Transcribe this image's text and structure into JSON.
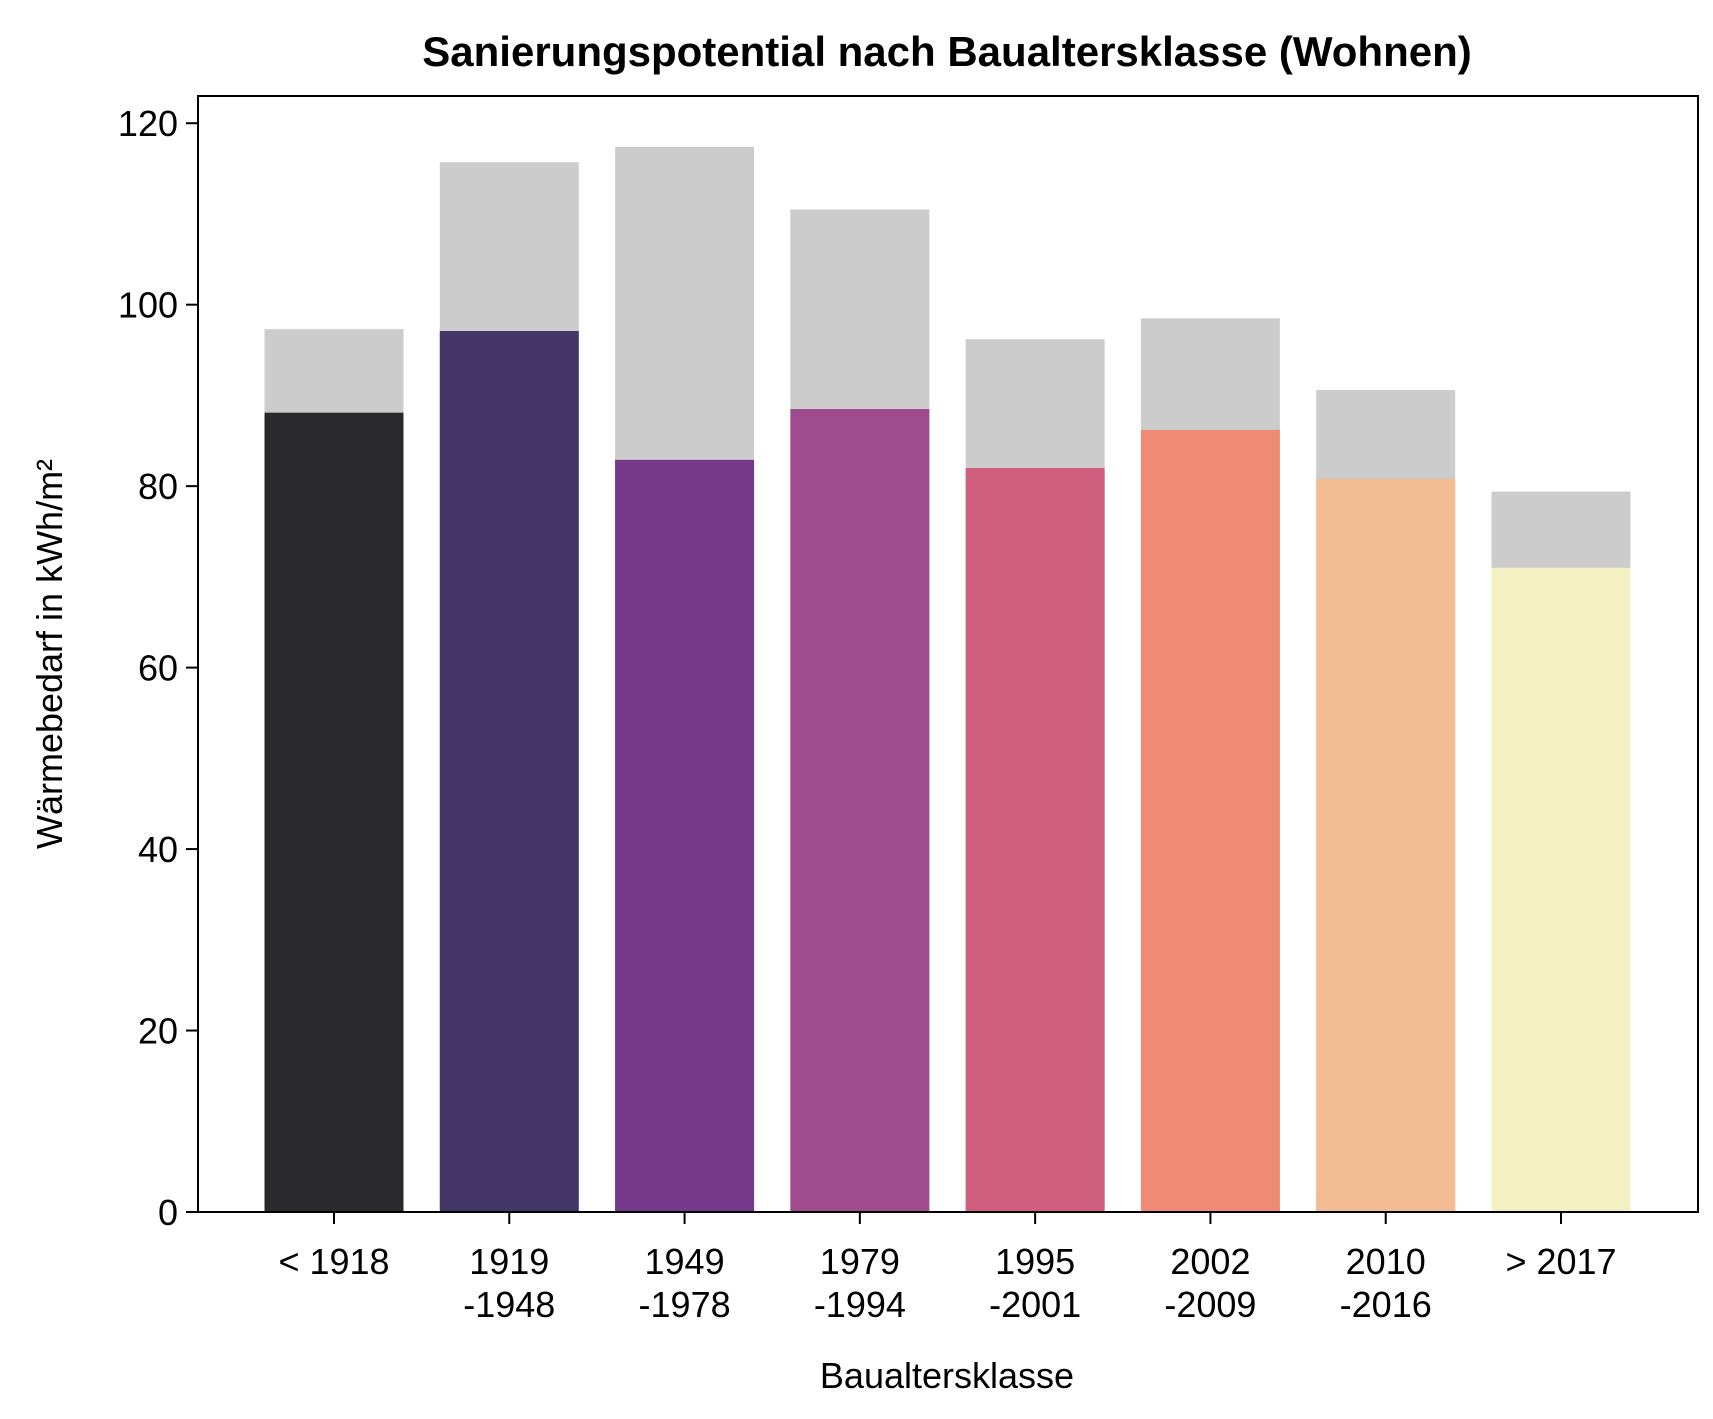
{
  "chart_data": {
    "type": "bar",
    "title": "Sanierungspotential nach Baualtersklasse (Wohnen)",
    "xlabel": "Baualtersklasse",
    "ylabel": "Wärmebedarf in kWh/m²",
    "ylim": [
      0,
      123
    ],
    "yticks": [
      0,
      20,
      40,
      60,
      80,
      100,
      120
    ],
    "categories": [
      [
        "< 1918"
      ],
      [
        "1919",
        "-1948"
      ],
      [
        "1949",
        "-1978"
      ],
      [
        "1979",
        "-1994"
      ],
      [
        "1995",
        "-2001"
      ],
      [
        "2002",
        "-2009"
      ],
      [
        "2010",
        "-2016"
      ],
      [
        "> 2017"
      ]
    ],
    "series": [
      {
        "values": [
          97.3,
          115.7,
          117.4,
          110.5,
          96.2,
          98.5,
          90.6,
          79.4
        ],
        "color": "#cccccc"
      },
      {
        "values": [
          88.1,
          97.1,
          82.9,
          88.5,
          82.0,
          86.2,
          80.8,
          71.0
        ],
        "colors": [
          "#2a2a2d",
          "#443768",
          "#773a8b",
          "#9e4c8e",
          "#d05e7e",
          "#ef8a74",
          "#f2bd93",
          "#f3f1c1"
        ]
      }
    ],
    "stacking": "overlay",
    "grid": false,
    "legend": "none"
  }
}
